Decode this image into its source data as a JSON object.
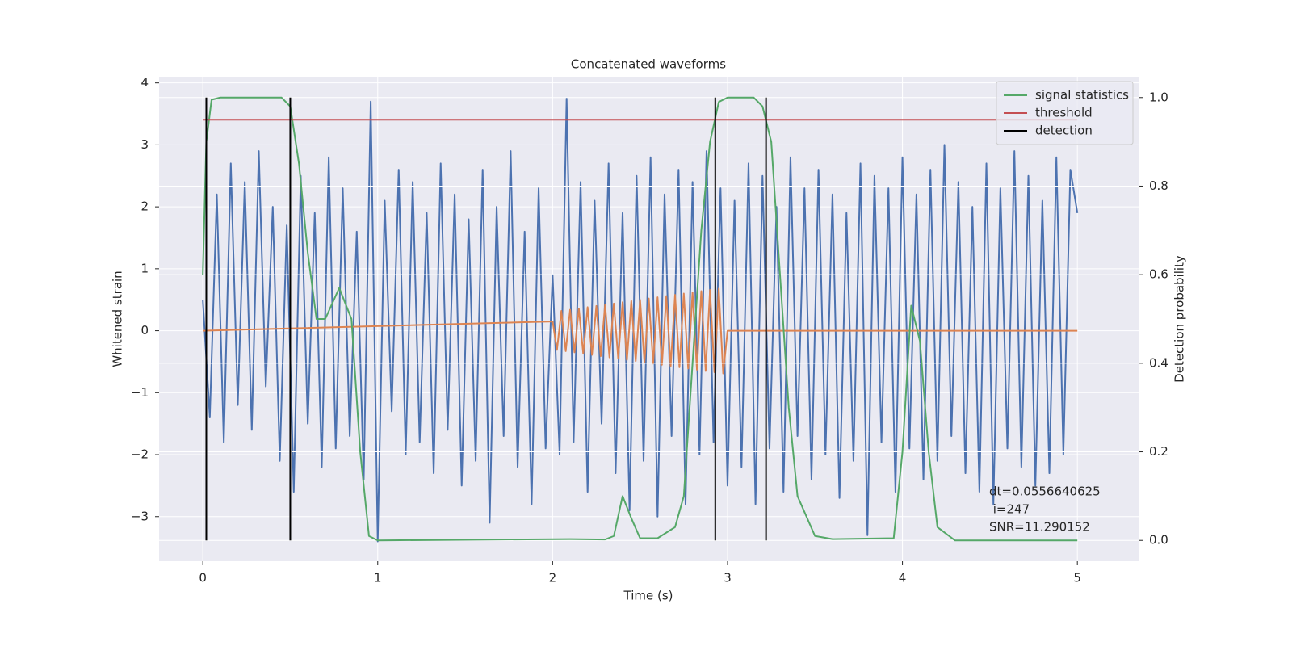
{
  "chart_data": {
    "type": "line",
    "title": "Concatenated waveforms",
    "xlabel": "Time (s)",
    "ylabel": "Whitened strain",
    "y2label": "Detection probability",
    "xlim": [
      -0.25,
      5.35
    ],
    "ylim": [
      -3.72,
      4.1
    ],
    "y2lim": [
      -0.047,
      1.047
    ],
    "xticks": [
      0,
      1,
      2,
      3,
      4,
      5
    ],
    "yticks": [
      {
        "value": -3,
        "label": "−3"
      },
      {
        "value": -2,
        "label": "−2"
      },
      {
        "value": -1,
        "label": "−1"
      },
      0,
      1,
      2,
      3,
      4
    ],
    "y2ticks": [
      {
        "value": 0,
        "label": "0.0"
      },
      0.2,
      0.4,
      0.6,
      0.8,
      {
        "value": 1,
        "label": "1.0"
      }
    ],
    "grid": true,
    "legend": "upper right",
    "series": [
      {
        "color": "#4c72b0",
        "axis": "y",
        "x": [
          0,
          0.04,
          0.08,
          0.12,
          0.16,
          0.2,
          0.24,
          0.28,
          0.32,
          0.36,
          0.4,
          0.44,
          0.48,
          0.52,
          0.56,
          0.6,
          0.64,
          0.68,
          0.72,
          0.76,
          0.8,
          0.84,
          0.88,
          0.92,
          0.96,
          1,
          1.04,
          1.08,
          1.12,
          1.16,
          1.2,
          1.24,
          1.28,
          1.32,
          1.36,
          1.4,
          1.44,
          1.48,
          1.52,
          1.56,
          1.6,
          1.64,
          1.68,
          1.72,
          1.76,
          1.8,
          1.84,
          1.88,
          1.92,
          1.96,
          2,
          2.04,
          2.08,
          2.12,
          2.16,
          2.2,
          2.24,
          2.28,
          2.32,
          2.36,
          2.4,
          2.44,
          2.48,
          2.52,
          2.56,
          2.6,
          2.64,
          2.68,
          2.72,
          2.76,
          2.8,
          2.84,
          2.88,
          2.92,
          2.96,
          3,
          3.04,
          3.08,
          3.12,
          3.16,
          3.2,
          3.24,
          3.28,
          3.32,
          3.36,
          3.4,
          3.44,
          3.48,
          3.52,
          3.56,
          3.6,
          3.64,
          3.68,
          3.72,
          3.76,
          3.8,
          3.84,
          3.88,
          3.92,
          3.96,
          4,
          4.04,
          4.08,
          4.12,
          4.16,
          4.2,
          4.24,
          4.28,
          4.32,
          4.36,
          4.4,
          4.44,
          4.48,
          4.52,
          4.56,
          4.6,
          4.64,
          4.68,
          4.72,
          4.76,
          4.8,
          4.84,
          4.88,
          4.92,
          4.96,
          5
        ],
        "values": [
          0.5,
          -1.4,
          2.2,
          -1.8,
          2.7,
          -1.2,
          2.4,
          -1.6,
          2.9,
          -0.9,
          2.0,
          -2.1,
          1.7,
          -2.6,
          2.5,
          -1.5,
          1.9,
          -2.2,
          2.8,
          -1.9,
          2.3,
          -1.7,
          1.6,
          -2.4,
          3.7,
          -3.4,
          2.1,
          -1.3,
          2.6,
          -2.0,
          2.4,
          -1.8,
          1.9,
          -2.3,
          2.7,
          -1.6,
          2.2,
          -2.5,
          1.8,
          -2.1,
          2.6,
          -3.1,
          2.0,
          -1.7,
          2.9,
          -2.2,
          1.6,
          -2.8,
          2.3,
          -1.9,
          0.9,
          -2.0,
          3.75,
          -1.8,
          2.4,
          -2.6,
          2.1,
          -1.5,
          2.7,
          -2.3,
          1.9,
          -2.9,
          2.5,
          -2.1,
          2.8,
          -3.0,
          2.2,
          -1.7,
          2.6,
          -2.8,
          2.4,
          -2.0,
          2.9,
          -1.8,
          2.3,
          -2.5,
          2.1,
          -2.2,
          2.7,
          -2.8,
          2.5,
          -1.9,
          2.0,
          -2.6,
          2.8,
          -1.7,
          2.3,
          -2.4,
          2.6,
          -2.0,
          2.2,
          -2.7,
          1.9,
          -2.1,
          2.7,
          -3.3,
          2.5,
          -1.8,
          2.3,
          -2.6,
          2.8,
          -1.9,
          2.2,
          -2.4,
          2.6,
          -2.1,
          3.0,
          -1.7,
          2.4,
          -2.3,
          2.0,
          -2.6,
          2.7,
          -2.8,
          2.3,
          -1.9,
          2.9,
          -2.2,
          2.5,
          -2.5,
          2.1,
          -2.3,
          2.8,
          -2.0,
          2.6,
          1.9
        ]
      },
      {
        "color": "#dd8452",
        "axis": "y",
        "x": [
          0,
          2,
          2.025,
          2.05,
          2.075,
          2.1,
          2.125,
          2.15,
          2.175,
          2.2,
          2.225,
          2.25,
          2.275,
          2.3,
          2.325,
          2.35,
          2.375,
          2.4,
          2.425,
          2.45,
          2.475,
          2.5,
          2.525,
          2.55,
          2.575,
          2.6,
          2.625,
          2.65,
          2.675,
          2.7,
          2.725,
          2.75,
          2.775,
          2.8,
          2.825,
          2.85,
          2.875,
          2.9,
          2.925,
          2.95,
          2.975,
          3,
          5
        ],
        "values": [
          0,
          0.15,
          -0.31,
          0.32,
          -0.33,
          0.34,
          -0.35,
          0.36,
          -0.37,
          0.38,
          -0.39,
          0.4,
          -0.41,
          0.42,
          -0.43,
          0.44,
          -0.45,
          0.46,
          -0.47,
          0.48,
          -0.49,
          0.5,
          -0.51,
          0.52,
          -0.53,
          0.54,
          -0.55,
          0.56,
          -0.57,
          0.58,
          -0.59,
          0.6,
          -0.61,
          0.62,
          -0.63,
          0.64,
          -0.65,
          0.66,
          -0.67,
          0.68,
          -0.69,
          0,
          0
        ]
      },
      {
        "name": "signal statistics",
        "color": "#55a868",
        "axis": "y2",
        "x": [
          0,
          0.02,
          0.05,
          0.1,
          0.45,
          0.5,
          0.55,
          0.6,
          0.65,
          0.7,
          0.78,
          0.85,
          0.9,
          0.95,
          1.0,
          2.1,
          2.3,
          2.35,
          2.4,
          2.45,
          2.5,
          2.6,
          2.7,
          2.75,
          2.8,
          2.85,
          2.9,
          2.95,
          3.0,
          3.15,
          3.2,
          3.25,
          3.3,
          3.35,
          3.4,
          3.5,
          3.6,
          3.95,
          4.0,
          4.05,
          4.1,
          4.15,
          4.2,
          4.3,
          5.0
        ],
        "values": [
          0.6,
          0.9,
          0.995,
          1.0,
          1.0,
          0.98,
          0.85,
          0.65,
          0.5,
          0.5,
          0.57,
          0.5,
          0.2,
          0.01,
          0.0,
          0.003,
          0.002,
          0.01,
          0.1,
          0.05,
          0.005,
          0.005,
          0.03,
          0.1,
          0.4,
          0.7,
          0.9,
          0.99,
          1.0,
          1.0,
          0.98,
          0.9,
          0.6,
          0.3,
          0.1,
          0.01,
          0.003,
          0.005,
          0.2,
          0.53,
          0.45,
          0.2,
          0.03,
          0.0,
          0.0
        ]
      },
      {
        "name": "threshold",
        "color": "#c44e52",
        "axis": "y2",
        "x": [
          0,
          5
        ],
        "values": [
          0.95,
          0.95
        ]
      }
    ],
    "vlines": {
      "name": "detection",
      "color": "#000000",
      "axis": "y2",
      "x": [
        0.02,
        0.5,
        2.93,
        3.22
      ],
      "ymin": 0,
      "ymax": 1
    },
    "annotation": [
      "dt=0.0556640625",
      " i=247",
      "SNR=11.290152"
    ]
  }
}
